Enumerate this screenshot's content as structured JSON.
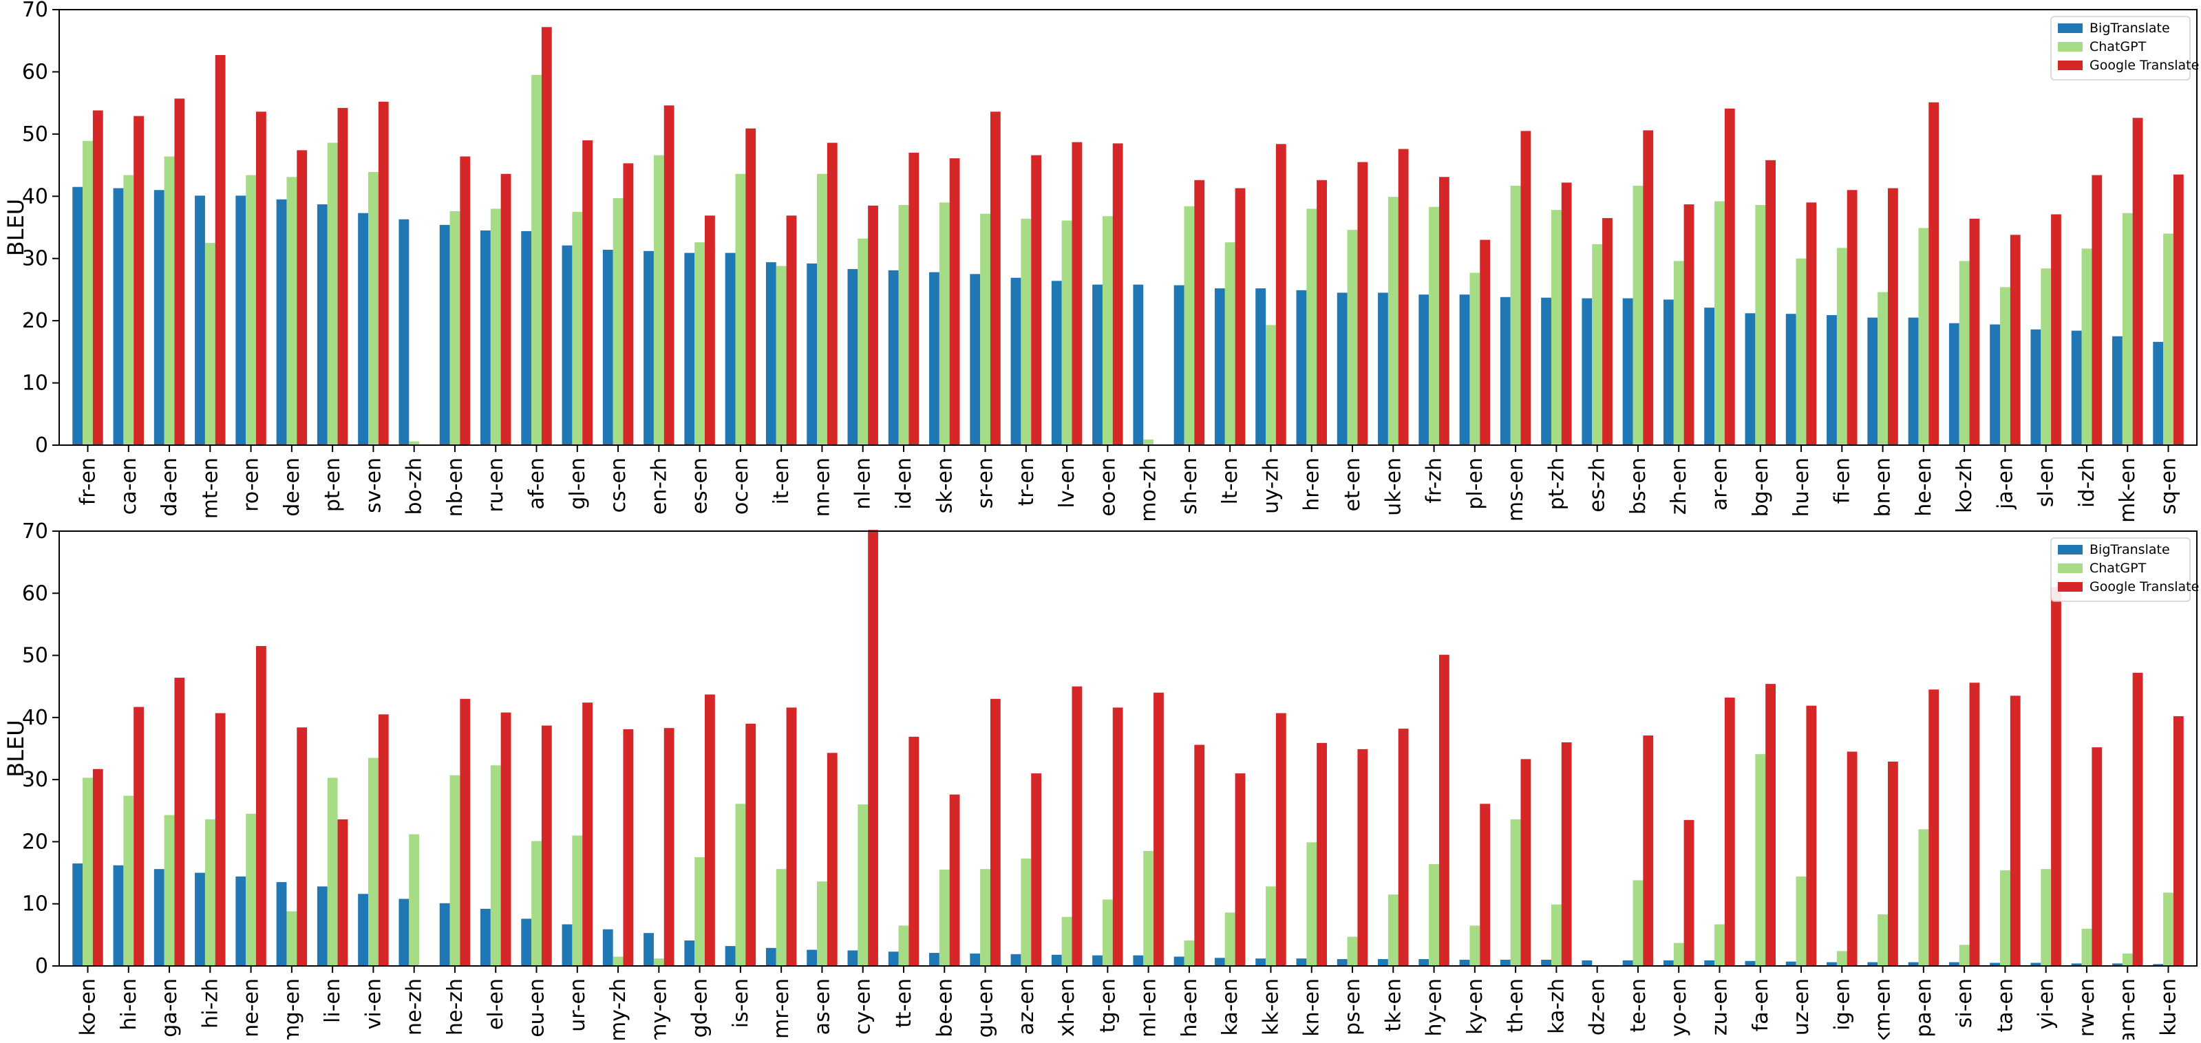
{
  "chart_data": [
    {
      "type": "bar",
      "ylabel": "BLEU",
      "xlabel": "",
      "ylim": [
        0,
        70
      ],
      "yticks": [
        0,
        10,
        20,
        30,
        40,
        50,
        60,
        70
      ],
      "legend_position": "top-right",
      "categories": [
        "fr-en",
        "ca-en",
        "da-en",
        "mt-en",
        "ro-en",
        "de-en",
        "pt-en",
        "sv-en",
        "bo-zh",
        "nb-en",
        "ru-en",
        "af-en",
        "gl-en",
        "cs-en",
        "en-zh",
        "es-en",
        "oc-en",
        "it-en",
        "nn-en",
        "nl-en",
        "id-en",
        "sk-en",
        "sr-en",
        "tr-en",
        "lv-en",
        "eo-en",
        "mo-zh",
        "sh-en",
        "lt-en",
        "uy-zh",
        "hr-en",
        "et-en",
        "uk-en",
        "fr-zh",
        "pl-en",
        "ms-en",
        "pt-zh",
        "es-zh",
        "bs-en",
        "zh-en",
        "ar-en",
        "bg-en",
        "hu-en",
        "fi-en",
        "bn-en",
        "he-en",
        "ko-zh",
        "ja-en",
        "sl-en",
        "id-zh",
        "mk-en",
        "sq-en"
      ],
      "series": [
        {
          "name": "BigTranslate",
          "color": "#1f77b4",
          "values": [
            41.5,
            41.3,
            41.0,
            40.1,
            40.1,
            39.5,
            38.7,
            37.3,
            36.3,
            35.4,
            34.5,
            34.4,
            32.1,
            31.4,
            31.2,
            30.9,
            30.9,
            29.4,
            29.2,
            28.3,
            28.1,
            27.8,
            27.5,
            26.9,
            26.4,
            25.8,
            25.8,
            25.7,
            25.2,
            25.2,
            24.9,
            24.5,
            24.5,
            24.2,
            24.2,
            23.8,
            23.7,
            23.6,
            23.6,
            23.4,
            22.1,
            21.2,
            21.1,
            20.9,
            20.5,
            20.5,
            19.6,
            19.4,
            18.6,
            18.4,
            17.5,
            16.6
          ]
        },
        {
          "name": "ChatGPT",
          "color": "#a6dc86",
          "values": [
            48.9,
            43.4,
            46.4,
            32.5,
            43.4,
            43.1,
            48.6,
            43.9,
            0.6,
            37.6,
            38.0,
            59.5,
            37.5,
            39.7,
            46.6,
            32.6,
            43.6,
            28.8,
            43.6,
            33.2,
            38.6,
            39.0,
            37.2,
            36.4,
            36.1,
            36.8,
            0.9,
            38.4,
            32.6,
            19.3,
            38.0,
            34.6,
            39.9,
            38.3,
            27.7,
            41.7,
            37.8,
            32.3,
            41.7,
            29.6,
            39.2,
            38.6,
            30.0,
            31.7,
            24.6,
            34.9,
            29.6,
            25.4,
            28.4,
            31.6,
            37.3,
            34.0
          ]
        },
        {
          "name": "Google Translate",
          "color": "#d62728",
          "values": [
            53.8,
            52.9,
            55.7,
            62.7,
            53.6,
            47.4,
            54.2,
            55.2,
            0,
            46.4,
            43.6,
            67.2,
            49.0,
            45.3,
            54.6,
            36.9,
            50.9,
            36.9,
            48.6,
            38.5,
            47.0,
            46.1,
            53.6,
            46.6,
            48.7,
            48.5,
            0,
            42.6,
            41.3,
            48.4,
            42.6,
            45.5,
            47.6,
            43.1,
            33.0,
            50.5,
            42.2,
            36.5,
            50.6,
            38.7,
            54.1,
            45.8,
            39.0,
            41.0,
            41.3,
            55.1,
            36.4,
            33.8,
            37.1,
            43.4,
            52.6,
            43.5
          ]
        }
      ]
    },
    {
      "type": "bar",
      "ylabel": "BLEU",
      "xlabel": "",
      "ylim": [
        0,
        70
      ],
      "yticks": [
        0,
        10,
        20,
        30,
        40,
        50,
        60,
        70
      ],
      "legend_position": "top-right",
      "categories": [
        "ko-en",
        "hi-en",
        "ga-en",
        "hi-zh",
        "ne-en",
        "mg-en",
        "li-en",
        "vi-en",
        "ne-zh",
        "he-zh",
        "el-en",
        "eu-en",
        "ur-en",
        "my-zh",
        "my-en",
        "gd-en",
        "is-en",
        "mr-en",
        "as-en",
        "cy-en",
        "tt-en",
        "be-en",
        "gu-en",
        "az-en",
        "xh-en",
        "tg-en",
        "ml-en",
        "ha-en",
        "ka-en",
        "kk-en",
        "kn-en",
        "ps-en",
        "tk-en",
        "hy-en",
        "ky-en",
        "th-en",
        "ka-zh",
        "dz-en",
        "te-en",
        "yo-en",
        "zu-en",
        "fa-en",
        "uz-en",
        "ig-en",
        "km-en",
        "pa-en",
        "si-en",
        "ta-en",
        "yi-en",
        "rw-en",
        "am-en",
        "ku-en"
      ],
      "series": [
        {
          "name": "BigTranslate",
          "color": "#1f77b4",
          "values": [
            16.5,
            16.2,
            15.6,
            15.0,
            14.4,
            13.5,
            12.8,
            11.6,
            10.8,
            10.1,
            9.2,
            7.6,
            6.7,
            5.9,
            5.3,
            4.1,
            3.2,
            2.9,
            2.6,
            2.5,
            2.3,
            2.1,
            2.0,
            1.9,
            1.8,
            1.7,
            1.7,
            1.5,
            1.3,
            1.2,
            1.2,
            1.1,
            1.1,
            1.1,
            1.0,
            1.0,
            1.0,
            0.9,
            0.9,
            0.9,
            0.9,
            0.8,
            0.7,
            0.6,
            0.6,
            0.6,
            0.6,
            0.5,
            0.5,
            0.4,
            0.4,
            0.3
          ]
        },
        {
          "name": "ChatGPT",
          "color": "#a6dc86",
          "values": [
            30.3,
            27.4,
            24.3,
            23.6,
            24.5,
            8.8,
            30.3,
            33.5,
            21.2,
            30.7,
            32.3,
            20.1,
            21.0,
            1.5,
            1.2,
            17.5,
            26.1,
            15.6,
            13.6,
            26.0,
            6.5,
            15.5,
            15.6,
            17.3,
            7.9,
            10.7,
            18.5,
            4.1,
            8.6,
            12.8,
            19.9,
            4.7,
            11.5,
            16.4,
            6.5,
            23.6,
            9.9,
            0.0,
            13.8,
            3.7,
            6.7,
            34.1,
            14.4,
            2.4,
            8.3,
            22.0,
            3.4,
            15.4,
            15.6,
            6.0,
            2.0,
            11.8
          ]
        },
        {
          "name": "Google Translate",
          "color": "#d62728",
          "values": [
            31.7,
            41.7,
            46.4,
            40.7,
            51.5,
            38.4,
            23.6,
            40.5,
            0,
            43.0,
            40.8,
            38.7,
            42.4,
            38.1,
            38.3,
            43.7,
            39.0,
            41.6,
            34.3,
            70.2,
            36.9,
            27.6,
            43.0,
            31.0,
            45.0,
            41.6,
            44.0,
            35.6,
            31.0,
            40.7,
            35.9,
            34.9,
            38.2,
            50.1,
            26.1,
            33.3,
            36.0,
            0,
            37.1,
            23.5,
            43.2,
            45.4,
            41.9,
            34.5,
            32.9,
            44.5,
            45.6,
            43.5,
            61.0,
            35.2,
            47.2,
            40.2
          ]
        }
      ]
    }
  ]
}
